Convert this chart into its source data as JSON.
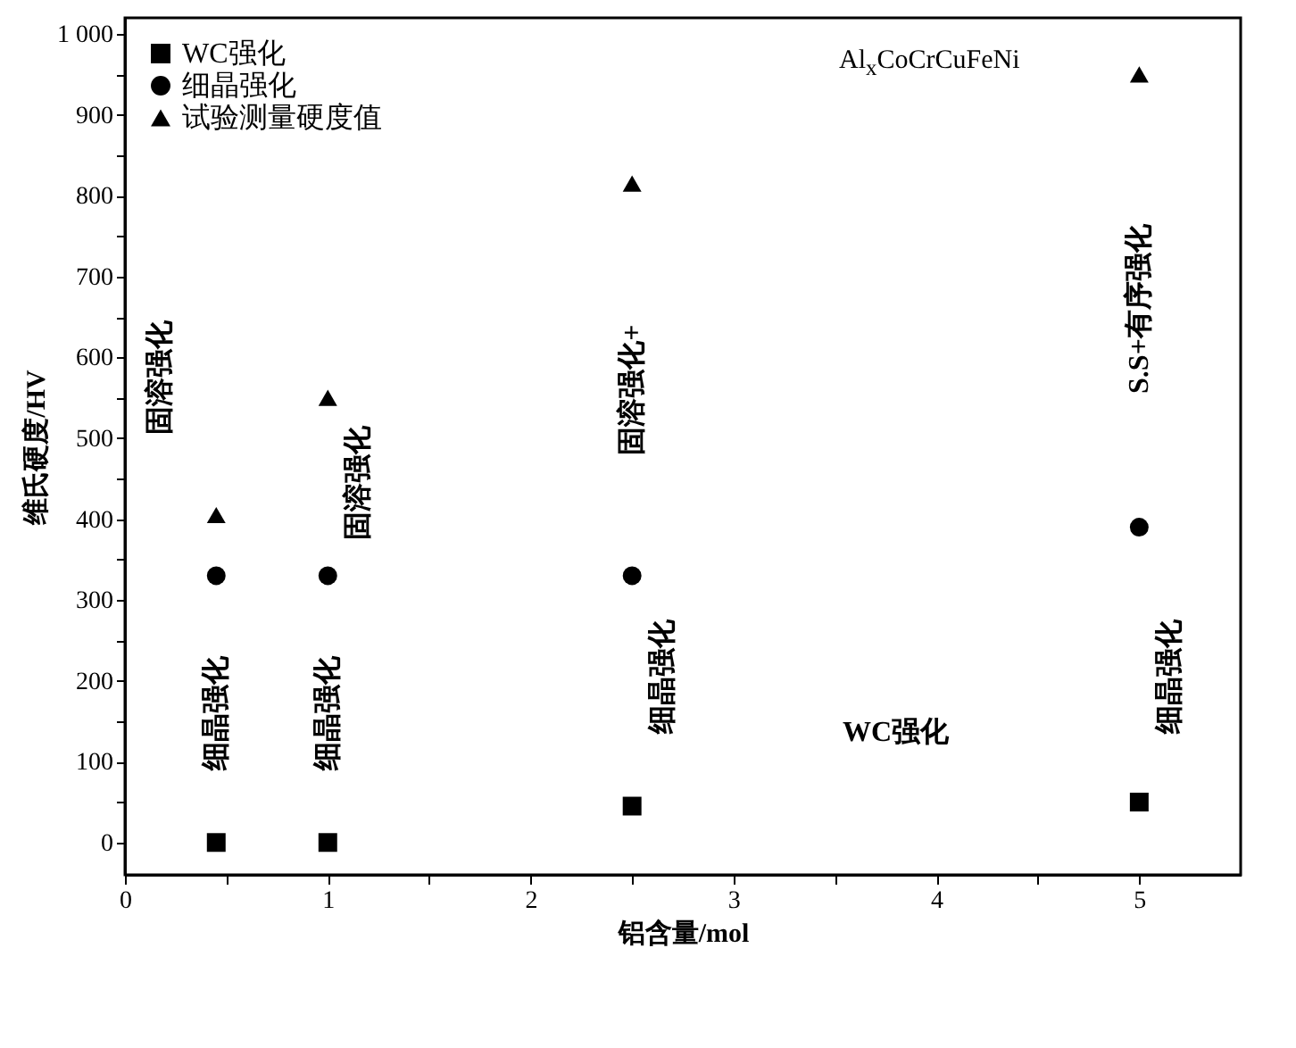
{
  "chart_data": {
    "type": "scatter",
    "title": "Al$_{x}$CoCrCuFeNi",
    "xlabel": "铝含量/mol",
    "ylabel": "维氏硬度/HV",
    "x": [
      0.45,
      1,
      2.5,
      5
    ],
    "series": [
      {
        "name": "WC强化",
        "color": "#000000",
        "marker": "square",
        "values": [
          0,
          0,
          45,
          50
        ]
      },
      {
        "name": "细晶强化",
        "color": "#000000",
        "marker": "circle",
        "values": [
          330,
          330,
          330,
          390
        ]
      },
      {
        "name": "试验测量硬度值",
        "color": "#000000",
        "marker": "triangle",
        "values": [
          405,
          550,
          815,
          950
        ]
      }
    ],
    "xlim": [
      0,
      5.5
    ],
    "ylim": [
      -40,
      1020
    ],
    "xticks": [
      0,
      {
        "value": 0.5,
        "label": null
      },
      1,
      {
        "value": 1.5,
        "label": null
      },
      2,
      {
        "value": 2.5,
        "label": null
      },
      3,
      {
        "value": 3.5,
        "label": null
      },
      4,
      {
        "value": 4.5,
        "label": null
      },
      5
    ],
    "yticks": [
      0,
      {
        "value": 50,
        "label": null
      },
      100,
      {
        "value": 150,
        "label": null
      },
      200,
      {
        "value": 250,
        "label": null
      },
      300,
      {
        "value": 350,
        "label": null
      },
      400,
      {
        "value": 450,
        "label": null
      },
      500,
      {
        "value": 550,
        "label": null
      },
      600,
      {
        "value": 650,
        "label": null
      },
      700,
      {
        "value": 750,
        "label": null
      },
      800,
      {
        "value": 850,
        "label": null
      },
      900,
      {
        "value": 950,
        "label": null
      },
      {
        "value": 1000,
        "label": "1 000"
      }
    ],
    "grid": false,
    "legend": "top left",
    "annotations": [
      "固溶强化",
      "细晶强化",
      "细晶强化",
      "固溶强化",
      "固溶强化+",
      "细晶强化",
      "S.S+有序强化",
      "细晶强化",
      "WC强化"
    ]
  }
}
